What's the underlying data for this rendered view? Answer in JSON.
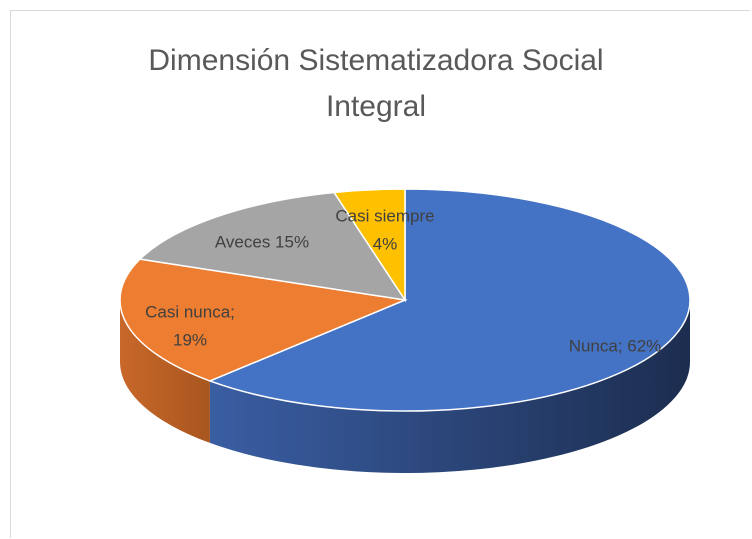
{
  "chart_data": {
    "type": "pie3d",
    "title": "Dimensión Sistematizadora Social Integral",
    "values": [
      62,
      19,
      15,
      4
    ],
    "value_labels": [
      [
        "Nunca; 62%"
      ],
      [
        "Casi nunca;",
        "19%"
      ],
      [
        "Aveces 15%"
      ],
      [
        "Casi siempre",
        "4%"
      ]
    ],
    "colors": [
      "#4472c4",
      "#ed7d31",
      "#a5a5a5",
      "#ffc000"
    ]
  }
}
